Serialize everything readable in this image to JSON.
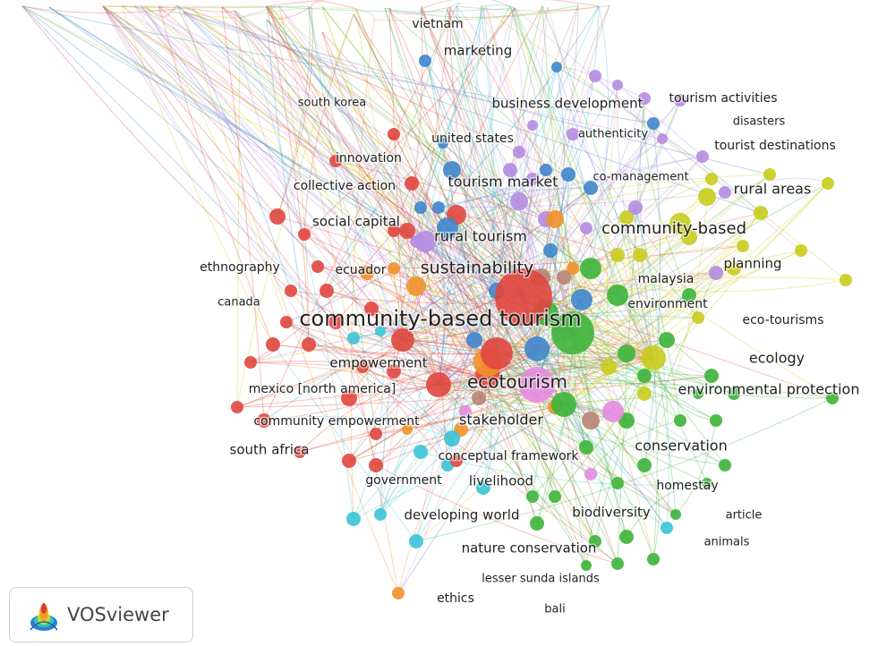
{
  "colors": {
    "red": "#e0463f",
    "blue": "#3f86cc",
    "purple": "#b48ce0",
    "yellow": "#c9cc1d",
    "green": "#3db43a",
    "cyan": "#3bc3d6",
    "orange": "#f0922c",
    "brown": "#b98476",
    "pink": "#e58be0"
  },
  "brand": {
    "name": "VOSviewer",
    "logo_icon": "vosviewer-logo-icon"
  },
  "terms": [
    {
      "id": "cbt",
      "label": "community-based tourism",
      "cluster": "red"
    },
    {
      "id": "ecotourism",
      "label": "ecotourism",
      "cluster": "orange"
    },
    {
      "id": "sustainability",
      "label": "sustainability",
      "cluster": "blue"
    },
    {
      "id": "rural_tourism",
      "label": "rural tourism",
      "cluster": "purple"
    },
    {
      "id": "community_based",
      "label": "community-based",
      "cluster": "yellow"
    },
    {
      "id": "tourism_market",
      "label": "tourism market",
      "cluster": "blue"
    },
    {
      "id": "empowerment",
      "label": "empowerment",
      "cluster": "red"
    },
    {
      "id": "stakeholder",
      "label": "stakeholder",
      "cluster": "brown"
    },
    {
      "id": "conservation",
      "label": "conservation",
      "cluster": "green"
    },
    {
      "id": "env_protection",
      "label": "environmental protection",
      "cluster": "green"
    },
    {
      "id": "ecology",
      "label": "ecology",
      "cluster": "yellow"
    },
    {
      "id": "rural_areas",
      "label": "rural areas",
      "cluster": "yellow"
    },
    {
      "id": "planning",
      "label": "planning",
      "cluster": "yellow"
    },
    {
      "id": "eco_tourisms",
      "label": "eco-tourisms",
      "cluster": "yellow"
    },
    {
      "id": "environment",
      "label": "environment",
      "cluster": "green"
    },
    {
      "id": "malaysia",
      "label": "malaysia",
      "cluster": "purple"
    },
    {
      "id": "tourist_destinations",
      "label": "tourist destinations",
      "cluster": "yellow"
    },
    {
      "id": "disasters",
      "label": "disasters",
      "cluster": "yellow"
    },
    {
      "id": "tourism_activities",
      "label": "tourism activities",
      "cluster": "purple"
    },
    {
      "id": "business_development",
      "label": "business development",
      "cluster": "purple"
    },
    {
      "id": "authenticity",
      "label": "authenticity",
      "cluster": "purple"
    },
    {
      "id": "united_states",
      "label": "united states",
      "cluster": "purple"
    },
    {
      "id": "co_management",
      "label": "co-management",
      "cluster": "blue"
    },
    {
      "id": "marketing",
      "label": "marketing",
      "cluster": "blue"
    },
    {
      "id": "vietnam",
      "label": "vietnam",
      "cluster": "blue"
    },
    {
      "id": "south_korea",
      "label": "south korea",
      "cluster": "red"
    },
    {
      "id": "innovation",
      "label": "innovation",
      "cluster": "red"
    },
    {
      "id": "collective_action",
      "label": "collective action",
      "cluster": "red"
    },
    {
      "id": "social_capital",
      "label": "social capital",
      "cluster": "red"
    },
    {
      "id": "ethnography",
      "label": "ethnography",
      "cluster": "red"
    },
    {
      "id": "ecuador",
      "label": "ecuador",
      "cluster": "orange"
    },
    {
      "id": "canada",
      "label": "canada",
      "cluster": "red"
    },
    {
      "id": "mexico",
      "label": "mexico [north america]",
      "cluster": "red"
    },
    {
      "id": "community_empowerment",
      "label": "community empowerment",
      "cluster": "red"
    },
    {
      "id": "south_africa",
      "label": "south africa",
      "cluster": "red"
    },
    {
      "id": "conceptual_framework",
      "label": "conceptual framework",
      "cluster": "cyan"
    },
    {
      "id": "government",
      "label": "government",
      "cluster": "cyan"
    },
    {
      "id": "livelihood",
      "label": "livelihood",
      "cluster": "cyan"
    },
    {
      "id": "developing_world",
      "label": "developing world",
      "cluster": "cyan"
    },
    {
      "id": "biodiversity",
      "label": "biodiversity",
      "cluster": "pink"
    },
    {
      "id": "homestay",
      "label": "homestay",
      "cluster": "pink"
    },
    {
      "id": "article",
      "label": "article",
      "cluster": "green"
    },
    {
      "id": "animals",
      "label": "animals",
      "cluster": "green"
    },
    {
      "id": "nature_conservation",
      "label": "nature conservation",
      "cluster": "pink"
    },
    {
      "id": "lesser_sunda",
      "label": "lesser sunda islands",
      "cluster": "brown"
    },
    {
      "id": "ethics",
      "label": "ethics",
      "cluster": "cyan"
    },
    {
      "id": "bali",
      "label": "bali",
      "cluster": "brown"
    }
  ]
}
